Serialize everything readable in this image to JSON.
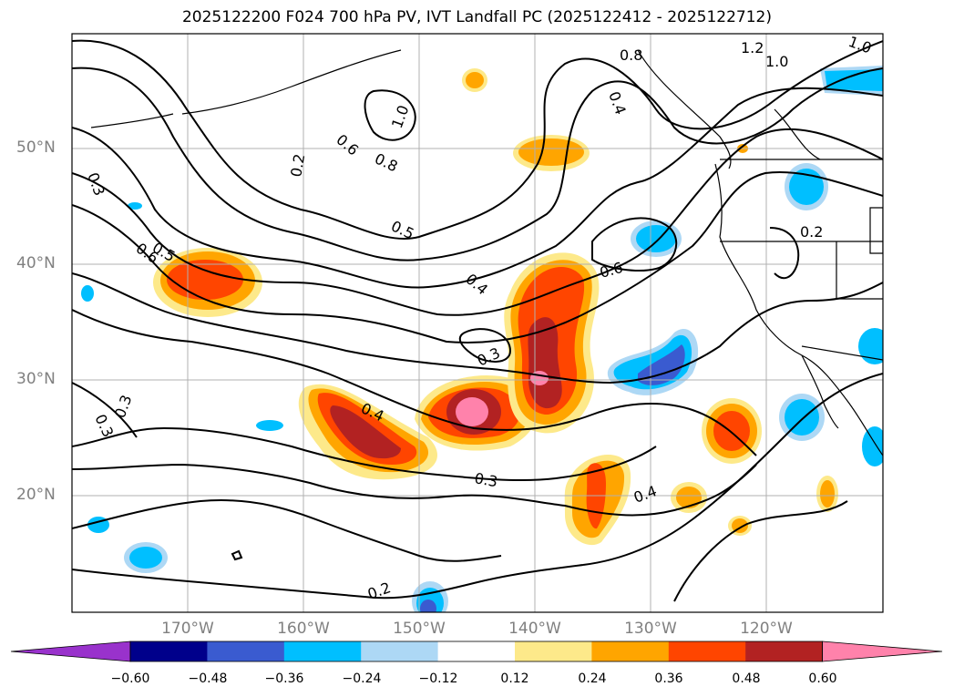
{
  "title": "2025122200 F024 700 hPa PV, IVT Landfall PC (2025122412 - 2025122712)",
  "lat_labels": [
    "50°N",
    "40°N",
    "30°N",
    "20°N"
  ],
  "lon_labels": [
    "170°W",
    "160°W",
    "150°W",
    "140°W",
    "130°W",
    "120°W"
  ],
  "contour_labels": [
    "1.0",
    "1.2",
    "1.0",
    "0.8",
    "0.6",
    "0.8",
    "1.0",
    "0.2",
    "0.3",
    "0.5",
    "0.6",
    "0.5",
    "0.4",
    "0.6",
    "0.2",
    "0.3",
    "0.4",
    "0.3",
    "0.3",
    "0.3",
    "0.4",
    "0.2",
    "0.4"
  ],
  "colorbar": {
    "tick_labels": [
      "−0.60",
      "−0.48",
      "−0.36",
      "−0.24",
      "−0.12",
      "0.12",
      "0.24",
      "0.36",
      "0.48",
      "0.60"
    ],
    "colors": [
      "#9932cc",
      "#00008b",
      "#3a5bd0",
      "#00bfff",
      "#add8f5",
      "#ffffff",
      "#fde98a",
      "#ffa500",
      "#ff4500",
      "#b22222",
      "#ff82ab"
    ]
  },
  "colors": {
    "ocean_bg": "#ffffff",
    "gridline": "#b0b0b0",
    "contour": "#000000"
  }
}
